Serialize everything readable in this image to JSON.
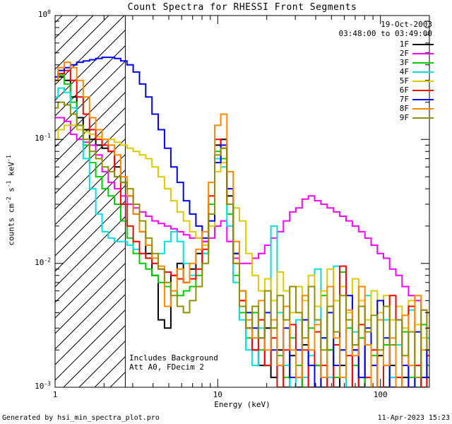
{
  "annotations": {
    "date": "19-Oct-2003",
    "time_range": "03:48:00 to 03:49:00",
    "includes_background": "Includes Background",
    "att_line": "Att A0, FDecim 2",
    "footer_left": "Generated by hsi_min_spectra_plot.pro",
    "footer_right": "11-Apr-2023 15:23"
  },
  "chart_data": {
    "type": "line",
    "title": "Count Spectra for RHESSI Front Segments",
    "xlabel": "Energy (keV)",
    "ylabel": "counts cm^-2 s^-1 keV^-1",
    "xscale": "log",
    "yscale": "log",
    "xlim": [
      1,
      200
    ],
    "ylim": [
      0.001,
      1
    ],
    "grid": false,
    "step": true,
    "legend_position": "top-right",
    "hatch_region": {
      "xmin": 1,
      "xmax": 2.7,
      "style": "diagonal-hatch",
      "note": "low-energy excluded band"
    },
    "x_ticks": [
      {
        "v": 1,
        "label": "1"
      },
      {
        "v": 10,
        "label": "10"
      },
      {
        "v": 100,
        "label": "100"
      }
    ],
    "y_ticks": [
      {
        "v": 1,
        "label": "10^0"
      },
      {
        "v": 0.1,
        "label": "10^-1"
      },
      {
        "v": 0.01,
        "label": "10^-2"
      },
      {
        "v": 0.001,
        "label": "10^-3"
      }
    ],
    "x": [
      1.0,
      1.09,
      1.19,
      1.3,
      1.42,
      1.56,
      1.7,
      1.86,
      2.03,
      2.22,
      2.42,
      2.65,
      2.89,
      3.16,
      3.45,
      3.77,
      4.12,
      4.5,
      4.92,
      5.38,
      5.88,
      6.43,
      7.02,
      7.68,
      8.39,
      9.17,
      10.0,
      10.9,
      11.9,
      13.0,
      14.2,
      15.6,
      17.0,
      18.6,
      20.3,
      22.2,
      24.2,
      26.5,
      28.9,
      31.6,
      34.5,
      37.7,
      41.2,
      45.0,
      49.2,
      53.8,
      58.8,
      64.3,
      70.2,
      76.8,
      83.9,
      91.7,
      100.0,
      109.0,
      119.0,
      130.0,
      142.0,
      156.0,
      170.0,
      186.0,
      200.0
    ],
    "series": [
      {
        "name": "1F",
        "color": "#000000",
        "values": [
          0.3,
          0.32,
          0.3,
          0.22,
          0.15,
          0.12,
          0.1,
          0.09,
          0.085,
          0.08,
          0.06,
          0.045,
          0.035,
          0.025,
          0.018,
          0.012,
          0.008,
          0.0035,
          0.003,
          0.008,
          0.01,
          0.007,
          0.009,
          0.012,
          0.015,
          0.03,
          0.09,
          0.1,
          0.035,
          0.012,
          0.005,
          0.003,
          0.002,
          0.0015,
          0.003,
          0.0012,
          0.002,
          0.001,
          0.0018,
          0.001,
          0.0022,
          0.001,
          0.0015,
          0.001,
          0.002,
          0.001,
          0.0015,
          0.001,
          0.002,
          0.001,
          0.0012,
          0.001,
          0.0018,
          0.001,
          0.0015,
          0.001,
          0.0012,
          0.001,
          0.0015,
          0.001,
          0.0012
        ]
      },
      {
        "name": "2F",
        "color": "#ff00ff",
        "values": [
          0.15,
          0.15,
          0.14,
          0.11,
          0.1,
          0.095,
          0.09,
          0.075,
          0.055,
          0.045,
          0.04,
          0.035,
          0.03,
          0.028,
          0.026,
          0.024,
          0.022,
          0.021,
          0.02,
          0.019,
          0.018,
          0.017,
          0.016,
          0.016,
          0.015,
          0.016,
          0.02,
          0.022,
          0.015,
          0.011,
          0.01,
          0.01,
          0.011,
          0.012,
          0.014,
          0.016,
          0.018,
          0.022,
          0.026,
          0.028,
          0.033,
          0.035,
          0.032,
          0.03,
          0.028,
          0.026,
          0.024,
          0.022,
          0.02,
          0.018,
          0.016,
          0.014,
          0.012,
          0.011,
          0.009,
          0.008,
          0.0065,
          0.0055,
          0.005,
          0.0042,
          0.004
        ]
      },
      {
        "name": "3F",
        "color": "#00cc00",
        "values": [
          0.3,
          0.33,
          0.28,
          0.2,
          0.13,
          0.09,
          0.065,
          0.05,
          0.04,
          0.035,
          0.03,
          0.022,
          0.016,
          0.012,
          0.01,
          0.009,
          0.008,
          0.007,
          0.0065,
          0.006,
          0.0055,
          0.006,
          0.0065,
          0.008,
          0.012,
          0.03,
          0.08,
          0.07,
          0.025,
          0.008,
          0.004,
          0.0025,
          0.004,
          0.002,
          0.0015,
          0.003,
          0.0018,
          0.0012,
          0.0025,
          0.0015,
          0.001,
          0.003,
          0.0015,
          0.0055,
          0.002,
          0.0012,
          0.0085,
          0.003,
          0.0015,
          0.0025,
          0.001,
          0.0018,
          0.001,
          0.0022,
          0.0012,
          0.001,
          0.0028,
          0.0012,
          0.001,
          0.0032,
          0.0015
        ]
      },
      {
        "name": "4F",
        "color": "#00e0e0",
        "values": [
          0.22,
          0.26,
          0.24,
          0.18,
          0.12,
          0.07,
          0.04,
          0.025,
          0.018,
          0.016,
          0.015,
          0.015,
          0.014,
          0.013,
          0.012,
          0.011,
          0.01,
          0.012,
          0.015,
          0.018,
          0.015,
          0.01,
          0.008,
          0.009,
          0.012,
          0.025,
          0.07,
          0.06,
          0.02,
          0.007,
          0.0035,
          0.002,
          0.0015,
          0.003,
          0.0015,
          0.02,
          0.004,
          0.0015,
          0.001,
          0.0035,
          0.0012,
          0.0018,
          0.009,
          0.0025,
          0.0012,
          0.0095,
          0.002,
          0.001,
          0.0028,
          0.0012,
          0.0055,
          0.0015,
          0.001,
          0.0035,
          0.0012,
          0.0022,
          0.001,
          0.0042,
          0.0015,
          0.001,
          0.0025
        ]
      },
      {
        "name": "5F",
        "color": "#ddc900",
        "values": [
          0.1,
          0.12,
          0.13,
          0.13,
          0.12,
          0.115,
          0.11,
          0.105,
          0.1,
          0.1,
          0.095,
          0.09,
          0.085,
          0.08,
          0.075,
          0.07,
          0.06,
          0.05,
          0.04,
          0.032,
          0.026,
          0.022,
          0.018,
          0.016,
          0.014,
          0.02,
          0.055,
          0.065,
          0.03,
          0.028,
          0.022,
          0.012,
          0.008,
          0.006,
          0.0075,
          0.005,
          0.0085,
          0.006,
          0.004,
          0.0065,
          0.005,
          0.008,
          0.0045,
          0.006,
          0.009,
          0.005,
          0.0065,
          0.004,
          0.0075,
          0.005,
          0.0035,
          0.006,
          0.004,
          0.0055,
          0.0035,
          0.0045,
          0.003,
          0.005,
          0.0032,
          0.0025,
          0.004
        ]
      },
      {
        "name": "6F",
        "color": "#ff0000",
        "values": [
          0.3,
          0.34,
          0.36,
          0.3,
          0.22,
          0.16,
          0.12,
          0.1,
          0.09,
          0.08,
          0.05,
          0.03,
          0.02,
          0.015,
          0.012,
          0.011,
          0.01,
          0.009,
          0.0085,
          0.008,
          0.0075,
          0.007,
          0.0075,
          0.009,
          0.013,
          0.035,
          0.1,
          0.085,
          0.03,
          0.01,
          0.005,
          0.003,
          0.002,
          0.0035,
          0.0015,
          0.0025,
          0.001,
          0.002,
          0.0032,
          0.0012,
          0.002,
          0.001,
          0.0028,
          0.0015,
          0.001,
          0.0022,
          0.0095,
          0.0018,
          0.001,
          0.0032,
          0.0012,
          0.002,
          0.001,
          0.0015,
          0.0055,
          0.0012,
          0.001,
          0.0045,
          0.0015,
          0.001,
          0.0018
        ]
      },
      {
        "name": "7F",
        "color": "#0000ee",
        "values": [
          0.32,
          0.36,
          0.38,
          0.4,
          0.42,
          0.43,
          0.44,
          0.45,
          0.46,
          0.46,
          0.45,
          0.43,
          0.4,
          0.35,
          0.28,
          0.22,
          0.16,
          0.12,
          0.085,
          0.06,
          0.045,
          0.032,
          0.025,
          0.02,
          0.016,
          0.022,
          0.065,
          0.09,
          0.04,
          0.012,
          0.006,
          0.004,
          0.003,
          0.0025,
          0.004,
          0.002,
          0.0015,
          0.003,
          0.0012,
          0.002,
          0.0035,
          0.0015,
          0.001,
          0.0025,
          0.004,
          0.0015,
          0.002,
          0.0055,
          0.002,
          0.0012,
          0.003,
          0.0015,
          0.005,
          0.0025,
          0.001,
          0.0035,
          0.0015,
          0.001,
          0.0028,
          0.0012,
          0.002
        ]
      },
      {
        "name": "8F",
        "color": "#ff8800",
        "values": [
          0.3,
          0.38,
          0.42,
          0.38,
          0.3,
          0.22,
          0.15,
          0.12,
          0.1,
          0.09,
          0.075,
          0.05,
          0.035,
          0.025,
          0.018,
          0.014,
          0.011,
          0.0095,
          0.0045,
          0.006,
          0.009,
          0.007,
          0.01,
          0.013,
          0.018,
          0.045,
          0.13,
          0.16,
          0.055,
          0.015,
          0.006,
          0.0035,
          0.0025,
          0.005,
          0.002,
          0.0035,
          0.0015,
          0.0045,
          0.002,
          0.0012,
          0.0055,
          0.002,
          0.0032,
          0.0012,
          0.0065,
          0.0025,
          0.0012,
          0.0042,
          0.0018,
          0.0065,
          0.0022,
          0.001,
          0.0035,
          0.0015,
          0.0025,
          0.001,
          0.0038,
          0.0015,
          0.0055,
          0.002,
          0.003
        ]
      },
      {
        "name": "9F",
        "color": "#8f8f00",
        "values": [
          0.18,
          0.2,
          0.19,
          0.16,
          0.13,
          0.1,
          0.08,
          0.07,
          0.06,
          0.055,
          0.05,
          0.045,
          0.04,
          0.03,
          0.022,
          0.016,
          0.012,
          0.009,
          0.007,
          0.0055,
          0.0045,
          0.004,
          0.005,
          0.0065,
          0.01,
          0.025,
          0.075,
          0.085,
          0.03,
          0.01,
          0.0045,
          0.003,
          0.0045,
          0.0025,
          0.006,
          0.003,
          0.0055,
          0.0035,
          0.0065,
          0.004,
          0.0025,
          0.0065,
          0.0035,
          0.002,
          0.0045,
          0.0028,
          0.0055,
          0.0035,
          0.0022,
          0.0045,
          0.0028,
          0.0038,
          0.002,
          0.0045,
          0.0022,
          0.0035,
          0.0018,
          0.0028,
          0.0012,
          0.0042,
          0.002
        ]
      }
    ]
  }
}
